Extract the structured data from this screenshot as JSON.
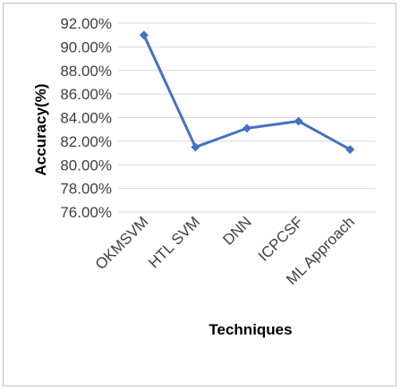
{
  "chart_data": {
    "type": "line",
    "categories": [
      "OKMSVM",
      "HTL SVM",
      "DNN",
      "ICPCSF",
      "ML Approach"
    ],
    "series": [
      {
        "values": [
          91.0,
          81.5,
          83.1,
          83.7,
          81.3
        ],
        "color": "#4472c4"
      }
    ],
    "xlabel": "Techniques",
    "ylabel": "Accuracy(%)",
    "ylim": [
      76,
      92
    ],
    "ytick_step": 2,
    "ytick_labels": [
      "76.00%",
      "78.00%",
      "80.00%",
      "82.00%",
      "84.00%",
      "86.00%",
      "88.00%",
      "90.00%",
      "92.00%"
    ],
    "grid": true,
    "legend": "none",
    "marker": "diamond"
  }
}
